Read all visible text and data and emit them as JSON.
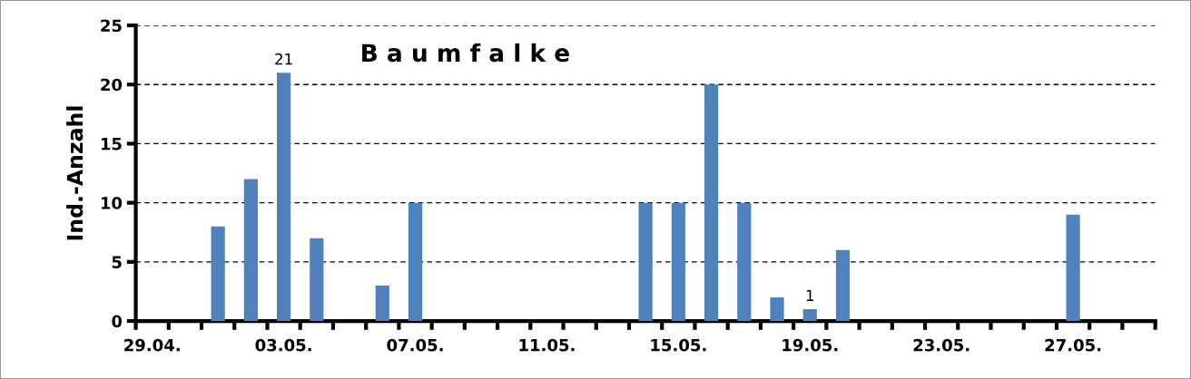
{
  "chart_data": {
    "type": "bar",
    "title": "B a u m f a l k e",
    "ylabel": "Ind.-Anzahl",
    "categories": [
      "29.04.",
      null,
      null,
      null,
      "03.05.",
      null,
      null,
      null,
      "07.05.",
      null,
      null,
      null,
      "11.05.",
      null,
      null,
      null,
      "15.05.",
      null,
      null,
      null,
      "19.05.",
      null,
      null,
      null,
      "23.05.",
      null,
      null,
      null,
      "27.05.",
      null,
      null
    ],
    "values": [
      0,
      0,
      8,
      12,
      21,
      7,
      0,
      3,
      10,
      0,
      0,
      0,
      0,
      0,
      0,
      10,
      10,
      20,
      10,
      2,
      1,
      6,
      0,
      0,
      0,
      0,
      0,
      0,
      9,
      0,
      0
    ],
    "value_labels": [
      null,
      null,
      null,
      null,
      "21",
      null,
      null,
      null,
      null,
      null,
      null,
      null,
      null,
      null,
      null,
      null,
      null,
      null,
      null,
      null,
      "1",
      null,
      null,
      null,
      null,
      null,
      null,
      null,
      null,
      null,
      null
    ],
    "color": "#4f81bd",
    "ylim": [
      0,
      25
    ],
    "yticks": [
      0,
      5,
      10,
      15,
      20,
      25
    ],
    "grid": "y"
  }
}
